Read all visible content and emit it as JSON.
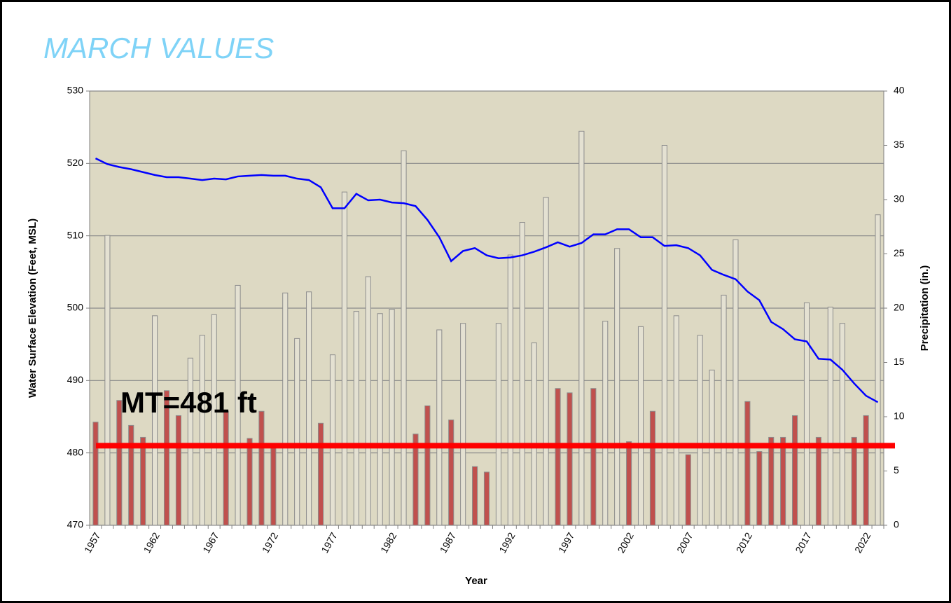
{
  "chart_data": {
    "type": "combo",
    "title": "MARCH VALUES",
    "x_label": "Year",
    "y_label": "Water Surface Elevation (Feet, MSL)",
    "y2_label": "Precipitation (in.)",
    "categories": [
      "1957",
      null,
      null,
      null,
      null,
      "1962",
      null,
      null,
      null,
      null,
      "1967",
      null,
      null,
      null,
      null,
      "1972",
      null,
      null,
      null,
      null,
      "1977",
      null,
      null,
      null,
      null,
      "1982",
      null,
      null,
      null,
      null,
      "1987",
      null,
      null,
      null,
      null,
      "1992",
      null,
      null,
      null,
      null,
      "1997",
      null,
      null,
      null,
      null,
      "2002",
      null,
      null,
      null,
      null,
      "2007",
      null,
      null,
      null,
      null,
      "2012",
      null,
      null,
      null,
      null,
      "2017",
      null,
      null,
      null,
      null,
      "2022",
      null
    ],
    "ylim": [
      470,
      530
    ],
    "yticks": [
      470,
      480,
      490,
      500,
      510,
      520,
      530
    ],
    "y2lim": [
      0,
      40
    ],
    "y2ticks": [
      0,
      5,
      10,
      15,
      20,
      25,
      30,
      35,
      40
    ],
    "grid": true,
    "series": [
      {
        "type": "bar",
        "axis": "y2",
        "stroke": "#8c8c8c",
        "values": [
          9.5,
          26.7,
          11.5,
          9.2,
          8.1,
          19.3,
          12.4,
          10.1,
          15.4,
          17.5,
          19.4,
          10.5,
          22.1,
          8.0,
          10.5,
          7.5,
          21.4,
          17.2,
          21.5,
          9.4,
          15.7,
          30.7,
          19.7,
          22.9,
          19.5,
          19.9,
          34.5,
          8.4,
          11.0,
          18.0,
          9.7,
          18.6,
          5.4,
          4.9,
          18.6,
          24.9,
          27.9,
          16.8,
          30.2,
          12.6,
          12.2,
          36.3,
          12.6,
          18.8,
          25.5,
          7.7,
          18.3,
          10.5,
          35.0,
          19.3,
          6.5,
          17.5,
          14.3,
          21.2,
          26.3,
          11.4,
          6.8,
          8.1,
          8.1,
          10.1,
          20.5,
          8.1,
          20.1,
          18.6,
          8.1,
          10.1,
          28.6
        ],
        "colors": [
          "#c0504d",
          "#e4e1d2",
          "#c0504d",
          "#c0504d",
          "#c0504d",
          "#e4e1d2",
          "#c0504d",
          "#c0504d",
          "#e4e1d2",
          "#e4e1d2",
          "#e4e1d2",
          "#c0504d",
          "#e4e1d2",
          "#c0504d",
          "#c0504d",
          "#c0504d",
          "#e4e1d2",
          "#e4e1d2",
          "#e4e1d2",
          "#c0504d",
          "#e4e1d2",
          "#e4e1d2",
          "#e4e1d2",
          "#e4e1d2",
          "#e4e1d2",
          "#e4e1d2",
          "#e4e1d2",
          "#c0504d",
          "#c0504d",
          "#e4e1d2",
          "#c0504d",
          "#e4e1d2",
          "#c0504d",
          "#c0504d",
          "#e4e1d2",
          "#e4e1d2",
          "#e4e1d2",
          "#e4e1d2",
          "#e4e1d2",
          "#c0504d",
          "#c0504d",
          "#e4e1d2",
          "#c0504d",
          "#e4e1d2",
          "#e4e1d2",
          "#c0504d",
          "#e4e1d2",
          "#c0504d",
          "#e4e1d2",
          "#e4e1d2",
          "#c0504d",
          "#e4e1d2",
          "#e4e1d2",
          "#e4e1d2",
          "#e4e1d2",
          "#c0504d",
          "#c0504d",
          "#c0504d",
          "#c0504d",
          "#c0504d",
          "#e4e1d2",
          "#c0504d",
          "#e4e1d2",
          "#e4e1d2",
          "#c0504d",
          "#c0504d",
          "#e4e1d2"
        ]
      },
      {
        "type": "line",
        "axis": "y",
        "color": "#0000ff",
        "values": [
          520.7,
          519.9,
          519.5,
          519.2,
          518.8,
          518.4,
          518.1,
          518.1,
          517.9,
          517.7,
          517.9,
          517.8,
          518.2,
          518.3,
          518.4,
          518.3,
          518.3,
          517.9,
          517.7,
          516.7,
          513.8,
          513.8,
          515.8,
          514.9,
          515.0,
          514.6,
          514.5,
          514.1,
          512.2,
          509.8,
          506.5,
          507.9,
          508.3,
          507.3,
          506.9,
          507.0,
          507.3,
          507.8,
          508.4,
          509.1,
          508.5,
          509.0,
          510.2,
          510.2,
          510.9,
          510.9,
          509.8,
          509.8,
          508.6,
          508.7,
          508.3,
          507.3,
          505.3,
          504.6,
          504.0,
          502.3,
          501.1,
          498.1,
          497.1,
          495.7,
          495.4,
          493.0,
          492.9,
          491.5,
          489.6,
          487.9,
          487.0
        ]
      }
    ],
    "threshold": {
      "value": 481,
      "label": "MT=481 ft",
      "color": "#ff0000"
    }
  }
}
